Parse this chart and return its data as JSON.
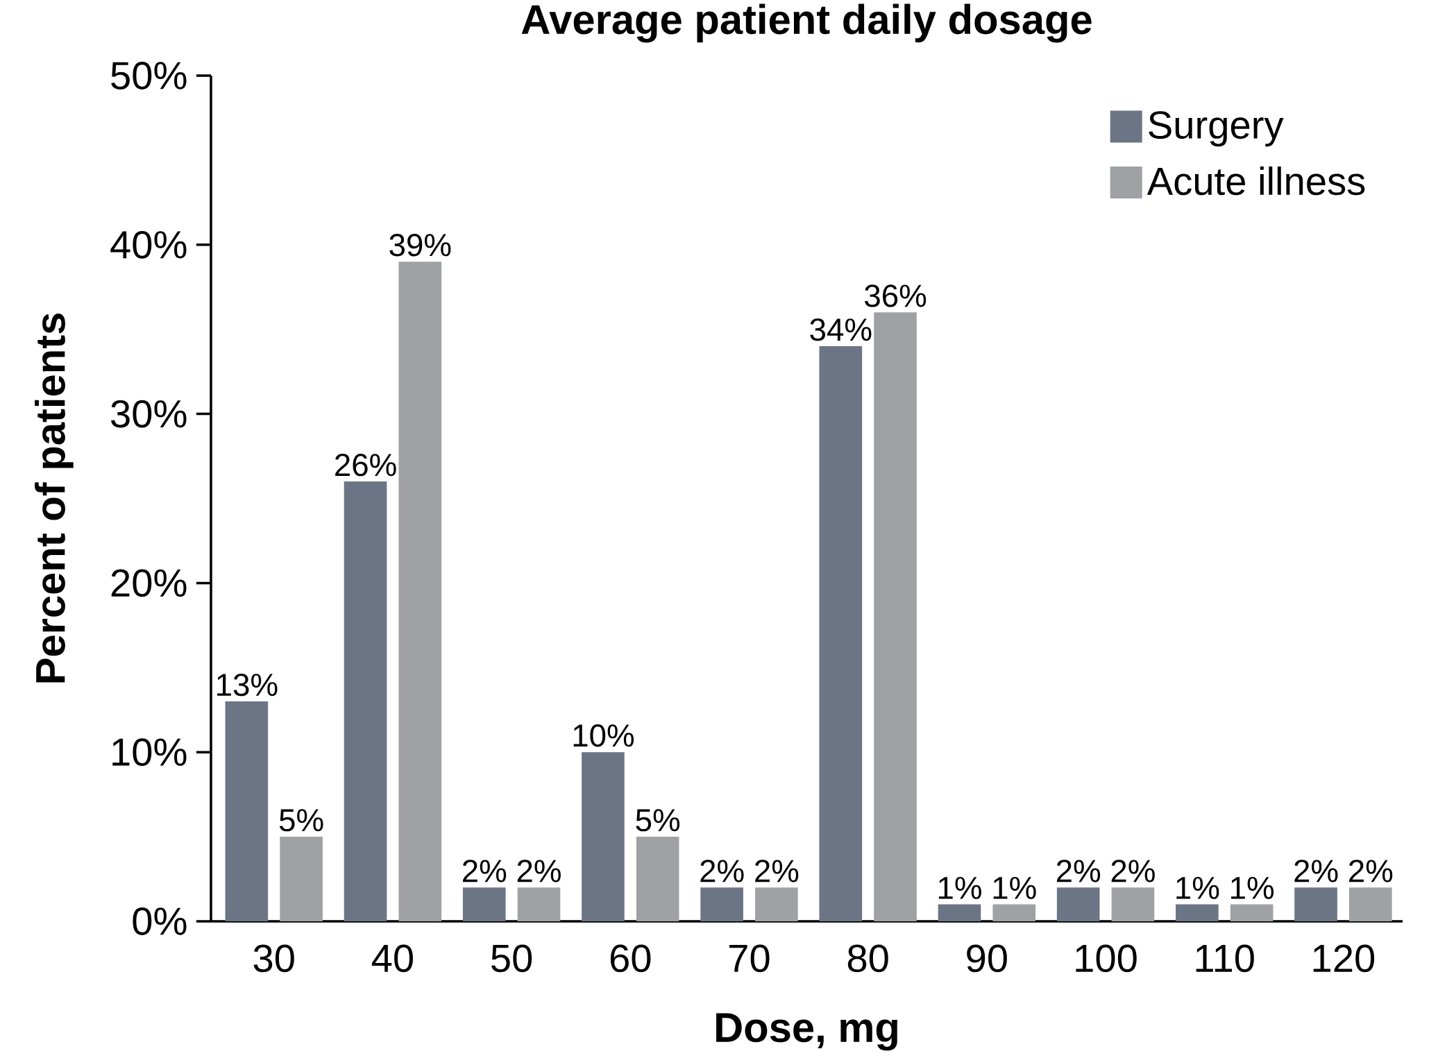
{
  "chart_data": {
    "type": "bar",
    "title": "Average patient daily dosage",
    "xlabel": "Dose, mg",
    "ylabel": "Percent of patients",
    "categories": [
      "30",
      "40",
      "50",
      "60",
      "70",
      "80",
      "90",
      "100",
      "110",
      "120"
    ],
    "series": [
      {
        "name": "Surgery",
        "color": "#6b7585",
        "values": [
          13,
          26,
          2,
          10,
          2,
          34,
          1,
          2,
          1,
          2
        ],
        "value_labels": [
          "13%",
          "26%",
          "2%",
          "10%",
          "2%",
          "34%",
          "1%",
          "2%",
          "1%",
          "2%"
        ]
      },
      {
        "name": "Acute illness",
        "color": "#a0a1a5",
        "values": [
          5,
          39,
          2,
          5,
          2,
          36,
          1,
          2,
          1,
          2
        ],
        "value_labels": [
          "5%",
          "39%",
          "2%",
          "5%",
          "2%",
          "36%",
          "1%",
          "2%",
          "1%",
          "2%"
        ]
      }
    ],
    "ylim": [
      0,
      50
    ],
    "yticks": [
      {
        "value": 0,
        "label": "0%"
      },
      {
        "value": 10,
        "label": "10%"
      },
      {
        "value": 20,
        "label": "20%"
      },
      {
        "value": 30,
        "label": "30%"
      },
      {
        "value": 40,
        "label": "40%"
      },
      {
        "value": 50,
        "label": "50%"
      }
    ],
    "legend": "top right",
    "grid": false
  }
}
